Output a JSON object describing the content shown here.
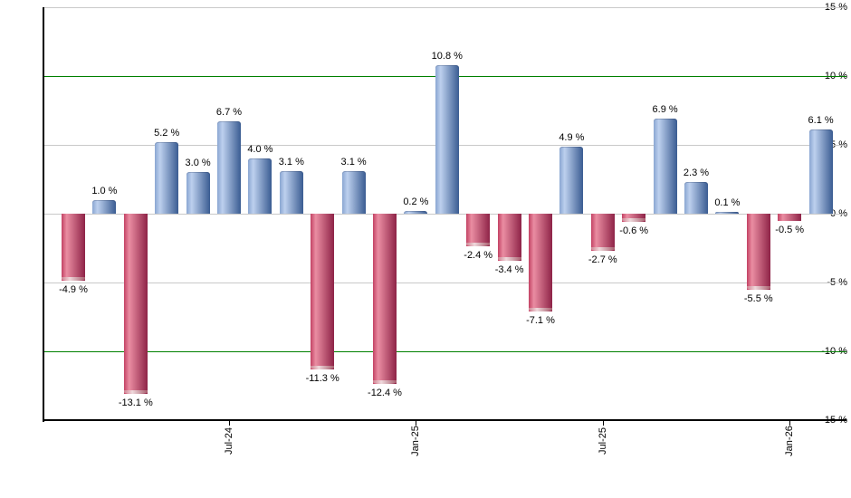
{
  "chart_data": {
    "type": "bar",
    "title": "",
    "xlabel": "",
    "ylabel": "",
    "unit": "%",
    "ylim": [
      -15,
      15
    ],
    "ytick_step": 5,
    "grid": true,
    "y_ticks": [
      {
        "value": 15,
        "label": "15 %",
        "color": "#c9c9c9"
      },
      {
        "value": 10,
        "label": "10 %",
        "color": "#008000"
      },
      {
        "value": 5,
        "label": "5 %",
        "color": "#c9c9c9"
      },
      {
        "value": 0,
        "label": "0 %",
        "color": "#c9c9c9"
      },
      {
        "value": -5,
        "label": "-5 %",
        "color": "#c9c9c9"
      },
      {
        "value": -10,
        "label": "-10 %",
        "color": "#008000"
      },
      {
        "value": -15,
        "label": "-15 %",
        "color": null
      }
    ],
    "x_ticks": [
      {
        "bar_index": 5,
        "label": "Jul-24"
      },
      {
        "bar_index": 11,
        "label": "Jan-25"
      },
      {
        "bar_index": 17,
        "label": "Jul-25"
      },
      {
        "bar_index": 23,
        "label": "Jan-26"
      }
    ],
    "bars": [
      {
        "value": -4.9,
        "label": "-4.9 %"
      },
      {
        "value": 1.0,
        "label": "1.0 %"
      },
      {
        "value": -13.1,
        "label": "-13.1 %"
      },
      {
        "value": 5.2,
        "label": "5.2 %"
      },
      {
        "value": 3.0,
        "label": "3.0 %"
      },
      {
        "value": 6.7,
        "label": "6.7 %"
      },
      {
        "value": 4.0,
        "label": "4.0 %"
      },
      {
        "value": 3.1,
        "label": "3.1 %"
      },
      {
        "value": -11.3,
        "label": "-11.3 %"
      },
      {
        "value": 3.1,
        "label": "3.1 %"
      },
      {
        "value": -12.4,
        "label": "-12.4 %"
      },
      {
        "value": 0.2,
        "label": "0.2 %"
      },
      {
        "value": 10.8,
        "label": "10.8 %"
      },
      {
        "value": -2.4,
        "label": "-2.4 %"
      },
      {
        "value": -3.4,
        "label": "-3.4 %"
      },
      {
        "value": -7.1,
        "label": "-7.1 %"
      },
      {
        "value": 4.9,
        "label": "4.9 %"
      },
      {
        "value": -2.7,
        "label": "-2.7 %"
      },
      {
        "value": -0.6,
        "label": "-0.6 %"
      },
      {
        "value": 6.9,
        "label": "6.9 %"
      },
      {
        "value": 2.3,
        "label": "2.3 %"
      },
      {
        "value": 0.1,
        "label": "0.1 %"
      },
      {
        "value": -5.5,
        "label": "-5.5 %"
      },
      {
        "value": -0.5,
        "label": "-0.5 %"
      },
      {
        "value": 6.1,
        "label": "6.1 %"
      }
    ],
    "colors": {
      "positive_gradient": [
        "#8aa6d2",
        "#bdd0ee",
        "#3a5c92"
      ],
      "negative_gradient": [
        "#c34264",
        "#ea8da2",
        "#8e2347"
      ],
      "grid_emphasis": "#008000",
      "grid_normal": "#c9c9c9",
      "axis": "#000000",
      "background": "#ffffff"
    }
  }
}
